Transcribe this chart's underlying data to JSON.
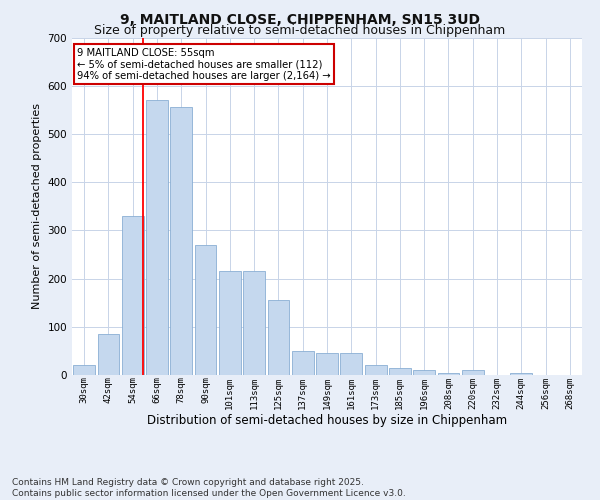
{
  "title": "9, MAITLAND CLOSE, CHIPPENHAM, SN15 3UD",
  "subtitle": "Size of property relative to semi-detached houses in Chippenham",
  "xlabel": "Distribution of semi-detached houses by size in Chippenham",
  "ylabel": "Number of semi-detached properties",
  "categories": [
    "30sqm",
    "42sqm",
    "54sqm",
    "66sqm",
    "78sqm",
    "90sqm",
    "101sqm",
    "113sqm",
    "125sqm",
    "137sqm",
    "149sqm",
    "161sqm",
    "173sqm",
    "185sqm",
    "196sqm",
    "208sqm",
    "220sqm",
    "232sqm",
    "244sqm",
    "256sqm",
    "268sqm"
  ],
  "values": [
    20,
    85,
    330,
    570,
    555,
    270,
    215,
    215,
    155,
    50,
    45,
    45,
    20,
    15,
    10,
    5,
    10,
    0,
    5,
    0,
    0
  ],
  "bar_color": "#c5d8ee",
  "bar_edge_color": "#8aafd4",
  "red_line_index": 2,
  "annotation_title": "9 MAITLAND CLOSE: 55sqm",
  "annotation_line1": "← 5% of semi-detached houses are smaller (112)",
  "annotation_line2": "94% of semi-detached houses are larger (2,164) →",
  "ylim": [
    0,
    700
  ],
  "yticks": [
    0,
    100,
    200,
    300,
    400,
    500,
    600,
    700
  ],
  "footer_line1": "Contains HM Land Registry data © Crown copyright and database right 2025.",
  "footer_line2": "Contains public sector information licensed under the Open Government Licence v3.0.",
  "background_color": "#e8eef8",
  "plot_bg_color": "#ffffff",
  "grid_color": "#c8d4e8",
  "title_fontsize": 10,
  "subtitle_fontsize": 9,
  "annotation_box_color": "#ffffff",
  "annotation_box_edge": "#cc0000",
  "footer_fontsize": 6.5
}
